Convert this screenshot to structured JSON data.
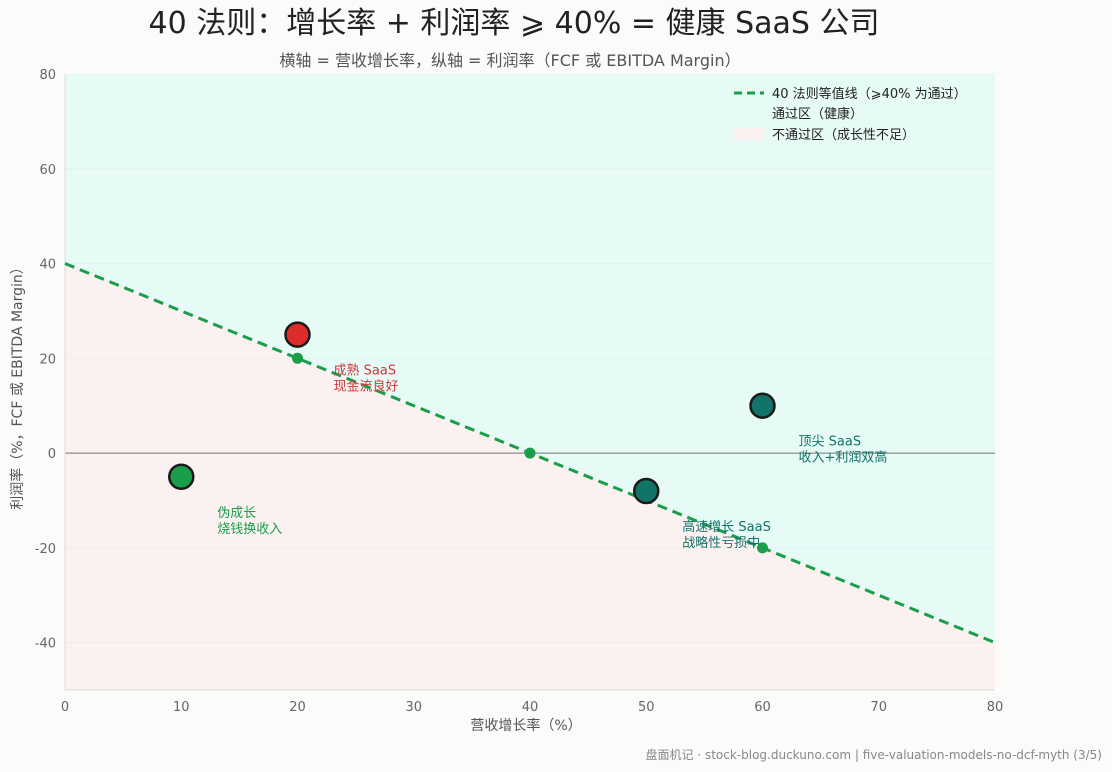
{
  "chart_data": {
    "type": "scatter",
    "title": "40 法则：增长率 + 利润率 ⩾ 40% = 健康 SaaS 公司",
    "subtitle": "横轴 = 营收增长率，纵轴 = 利润率（FCF 或 EBITDA Margin）",
    "xlabel": "营收增长率（%）",
    "ylabel": "利润率（%，FCF 或 EBITDA Margin）",
    "xlim": [
      0,
      80
    ],
    "ylim": [
      -50,
      80
    ],
    "xticks": [
      0,
      10,
      20,
      30,
      40,
      50,
      60,
      70,
      80
    ],
    "yticks": [
      -40,
      -20,
      0,
      20,
      40,
      60,
      80
    ],
    "grid": true,
    "legend_position": "top-right",
    "threshold_line": {
      "name": "40 法则等值线（⩾40% 为通过）",
      "x": [
        0,
        80
      ],
      "y": [
        40,
        -40
      ],
      "color": "#1a9e4a"
    },
    "regions": [
      {
        "name": "通过区（健康）",
        "color": "#e6faf6"
      },
      {
        "name": "不通过区（成长性不足）",
        "color": "#fbf1f0"
      }
    ],
    "line_markers": [
      {
        "x": 20,
        "y": 20
      },
      {
        "x": 40,
        "y": 0
      },
      {
        "x": 60,
        "y": -20
      }
    ],
    "points": [
      {
        "x": 10,
        "y": -5,
        "color": "#1a9e4a",
        "label_lines": [
          "伪成长",
          "烧钱换收入"
        ],
        "label_color": "#1a9e4a"
      },
      {
        "x": 20,
        "y": 25,
        "color": "#dd2a2a",
        "label_lines": [
          "成熟 SaaS",
          "现金流良好"
        ],
        "label_color": "#cc3a3a"
      },
      {
        "x": 50,
        "y": -8,
        "color": "#127369",
        "label_lines": [
          "高速增长 SaaS",
          "战略性亏损中"
        ],
        "label_color": "#127369"
      },
      {
        "x": 60,
        "y": 10,
        "color": "#127369",
        "label_lines": [
          "顶尖 SaaS",
          "收入+利润双高"
        ],
        "label_color": "#127369"
      }
    ]
  },
  "footer": "盘面机记 · stock-blog.duckuno.com | five-valuation-models-no-dcf-myth (3/5)"
}
